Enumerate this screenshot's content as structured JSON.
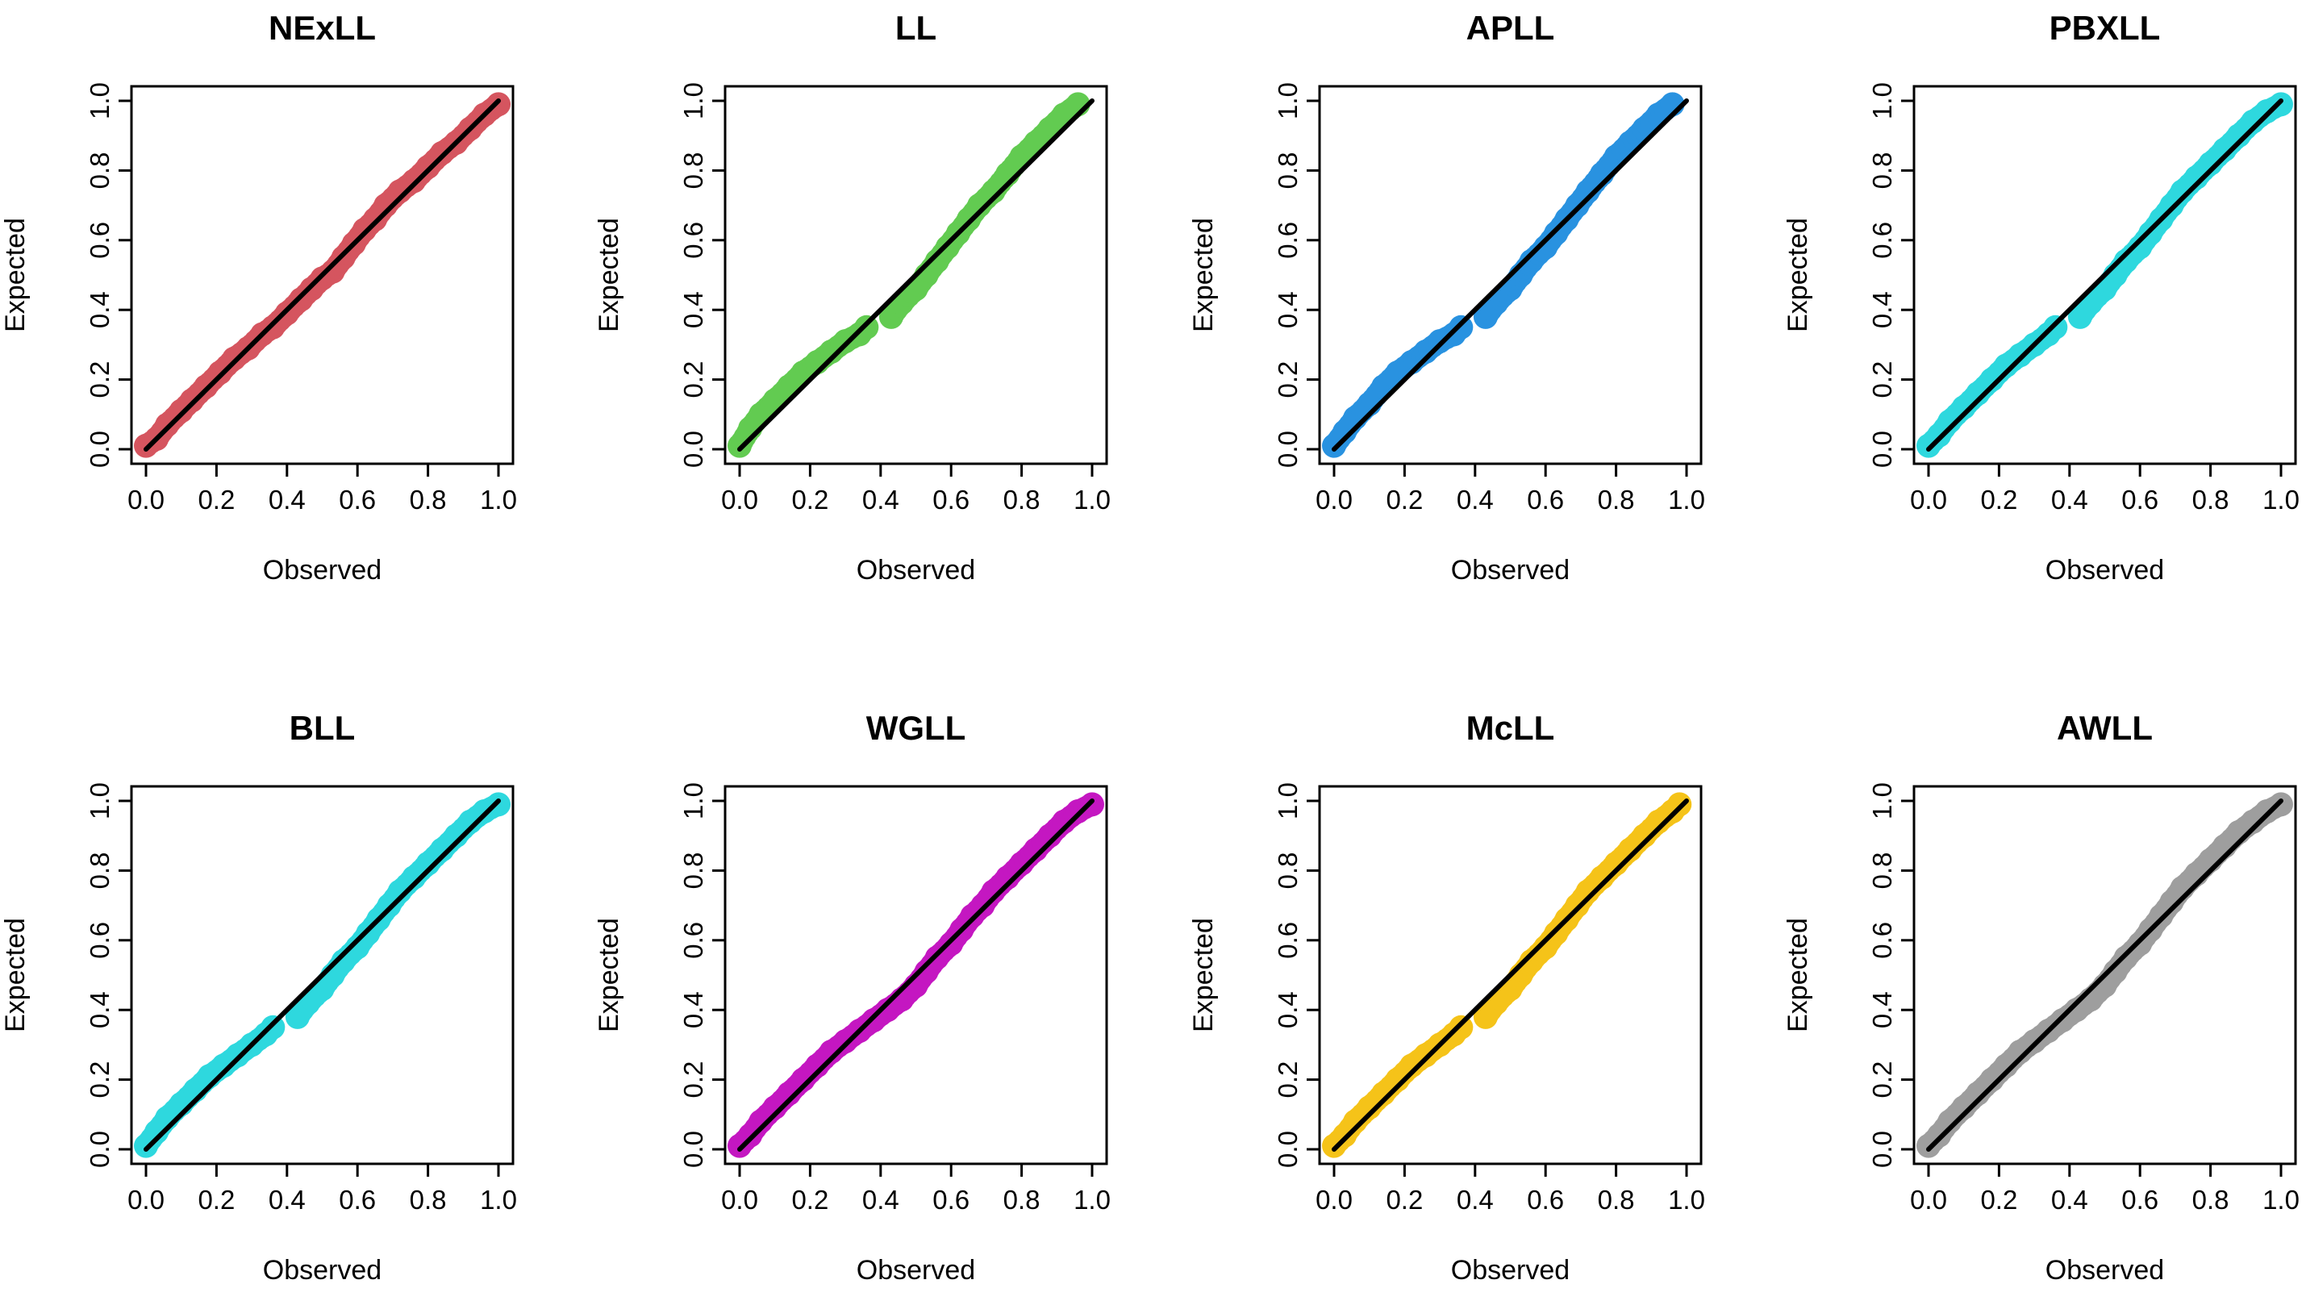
{
  "chart_data": [
    {
      "type": "scatter",
      "title": "NExLL",
      "xlabel": "Observed",
      "ylabel": "Expected",
      "color": "#D5555F",
      "xlim": [
        0,
        1
      ],
      "ylim": [
        0,
        1
      ],
      "ticks": [
        "0.0",
        "0.2",
        "0.4",
        "0.6",
        "0.8",
        "1.0"
      ],
      "x": [
        0.0,
        0.03,
        0.06,
        0.1,
        0.13,
        0.17,
        0.21,
        0.25,
        0.29,
        0.33,
        0.36,
        0.4,
        0.44,
        0.47,
        0.5,
        0.53,
        0.56,
        0.59,
        0.62,
        0.65,
        0.68,
        0.72,
        0.76,
        0.8,
        0.84,
        0.88,
        0.92,
        0.96,
        1.0
      ],
      "y": [
        0.01,
        0.03,
        0.07,
        0.11,
        0.14,
        0.18,
        0.22,
        0.26,
        0.29,
        0.33,
        0.35,
        0.39,
        0.43,
        0.46,
        0.49,
        0.51,
        0.55,
        0.59,
        0.63,
        0.66,
        0.7,
        0.74,
        0.77,
        0.81,
        0.85,
        0.88,
        0.92,
        0.96,
        0.99
      ],
      "reference_line": {
        "x": [
          0,
          1
        ],
        "y": [
          0,
          1
        ]
      }
    },
    {
      "type": "scatter",
      "title": "LL",
      "xlabel": "Observed",
      "ylabel": "Expected",
      "color": "#62CB51",
      "xlim": [
        0,
        1
      ],
      "ylim": [
        0,
        1
      ],
      "ticks": [
        "0.0",
        "0.2",
        "0.4",
        "0.6",
        "0.8",
        "1.0"
      ],
      "x": [
        0.0,
        0.03,
        0.06,
        0.1,
        0.14,
        0.18,
        0.22,
        0.26,
        0.3,
        0.34,
        0.36,
        0.43,
        0.46,
        0.5,
        0.53,
        0.56,
        0.59,
        0.62,
        0.65,
        0.68,
        0.72,
        0.76,
        0.8,
        0.84,
        0.88,
        0.92,
        0.96
      ],
      "y": [
        0.01,
        0.06,
        0.1,
        0.14,
        0.18,
        0.22,
        0.25,
        0.28,
        0.31,
        0.33,
        0.35,
        0.38,
        0.42,
        0.46,
        0.5,
        0.54,
        0.58,
        0.62,
        0.66,
        0.7,
        0.74,
        0.79,
        0.84,
        0.88,
        0.92,
        0.96,
        0.99
      ],
      "reference_line": {
        "x": [
          0,
          1
        ],
        "y": [
          0,
          1
        ]
      }
    },
    {
      "type": "scatter",
      "title": "APLL",
      "xlabel": "Observed",
      "ylabel": "Expected",
      "color": "#2992E0",
      "xlim": [
        0,
        1
      ],
      "ylim": [
        0,
        1
      ],
      "ticks": [
        "0.0",
        "0.2",
        "0.4",
        "0.6",
        "0.8",
        "1.0"
      ],
      "x": [
        0.0,
        0.03,
        0.06,
        0.1,
        0.14,
        0.18,
        0.22,
        0.26,
        0.3,
        0.34,
        0.36,
        0.43,
        0.46,
        0.5,
        0.53,
        0.56,
        0.6,
        0.63,
        0.66,
        0.69,
        0.72,
        0.76,
        0.8,
        0.84,
        0.88,
        0.92,
        0.96
      ],
      "y": [
        0.01,
        0.05,
        0.09,
        0.13,
        0.18,
        0.22,
        0.25,
        0.28,
        0.31,
        0.33,
        0.35,
        0.38,
        0.42,
        0.46,
        0.5,
        0.54,
        0.58,
        0.62,
        0.66,
        0.7,
        0.74,
        0.79,
        0.84,
        0.88,
        0.92,
        0.96,
        0.99
      ],
      "reference_line": {
        "x": [
          0,
          1
        ],
        "y": [
          0,
          1
        ]
      }
    },
    {
      "type": "scatter",
      "title": "PBXLL",
      "xlabel": "Observed",
      "ylabel": "Expected",
      "color": "#2ED8DE",
      "xlim": [
        0,
        1
      ],
      "ylim": [
        0,
        1
      ],
      "ticks": [
        "0.0",
        "0.2",
        "0.4",
        "0.6",
        "0.8",
        "1.0"
      ],
      "x": [
        0.0,
        0.03,
        0.06,
        0.1,
        0.14,
        0.18,
        0.22,
        0.26,
        0.3,
        0.34,
        0.36,
        0.43,
        0.46,
        0.5,
        0.53,
        0.56,
        0.6,
        0.63,
        0.66,
        0.69,
        0.72,
        0.76,
        0.8,
        0.84,
        0.88,
        0.92,
        0.96,
        1.0
      ],
      "y": [
        0.01,
        0.04,
        0.08,
        0.12,
        0.16,
        0.2,
        0.24,
        0.27,
        0.3,
        0.33,
        0.35,
        0.38,
        0.42,
        0.46,
        0.5,
        0.54,
        0.58,
        0.62,
        0.66,
        0.7,
        0.74,
        0.78,
        0.82,
        0.86,
        0.9,
        0.94,
        0.97,
        0.99
      ],
      "reference_line": {
        "x": [
          0,
          1
        ],
        "y": [
          0,
          1
        ]
      }
    },
    {
      "type": "scatter",
      "title": "BLL",
      "xlabel": "Observed",
      "ylabel": "Expected",
      "color": "#2ED8DE",
      "xlim": [
        0,
        1
      ],
      "ylim": [
        0,
        1
      ],
      "ticks": [
        "0.0",
        "0.2",
        "0.4",
        "0.6",
        "0.8",
        "1.0"
      ],
      "x": [
        0.0,
        0.03,
        0.06,
        0.1,
        0.14,
        0.18,
        0.22,
        0.26,
        0.3,
        0.34,
        0.36,
        0.43,
        0.46,
        0.5,
        0.53,
        0.56,
        0.6,
        0.63,
        0.66,
        0.69,
        0.72,
        0.76,
        0.8,
        0.84,
        0.88,
        0.92,
        0.96,
        1.0
      ],
      "y": [
        0.01,
        0.05,
        0.09,
        0.13,
        0.17,
        0.21,
        0.24,
        0.27,
        0.3,
        0.33,
        0.35,
        0.38,
        0.42,
        0.46,
        0.5,
        0.54,
        0.58,
        0.62,
        0.66,
        0.7,
        0.74,
        0.78,
        0.82,
        0.86,
        0.9,
        0.94,
        0.97,
        0.99
      ],
      "reference_line": {
        "x": [
          0,
          1
        ],
        "y": [
          0,
          1
        ]
      }
    },
    {
      "type": "scatter",
      "title": "WGLL",
      "xlabel": "Observed",
      "ylabel": "Expected",
      "color": "#C417C1",
      "xlim": [
        0,
        1
      ],
      "ylim": [
        0,
        1
      ],
      "ticks": [
        "0.0",
        "0.2",
        "0.4",
        "0.6",
        "0.8",
        "1.0"
      ],
      "x": [
        0.0,
        0.03,
        0.06,
        0.1,
        0.14,
        0.18,
        0.22,
        0.26,
        0.3,
        0.34,
        0.38,
        0.42,
        0.46,
        0.5,
        0.53,
        0.56,
        0.6,
        0.63,
        0.66,
        0.69,
        0.72,
        0.76,
        0.8,
        0.84,
        0.88,
        0.92,
        0.96,
        1.0
      ],
      "y": [
        0.01,
        0.04,
        0.08,
        0.12,
        0.16,
        0.2,
        0.24,
        0.28,
        0.31,
        0.34,
        0.37,
        0.4,
        0.43,
        0.47,
        0.51,
        0.55,
        0.59,
        0.63,
        0.67,
        0.7,
        0.74,
        0.78,
        0.82,
        0.86,
        0.9,
        0.94,
        0.97,
        0.99
      ],
      "reference_line": {
        "x": [
          0,
          1
        ],
        "y": [
          0,
          1
        ]
      }
    },
    {
      "type": "scatter",
      "title": "McLL",
      "xlabel": "Observed",
      "ylabel": "Expected",
      "color": "#F5C319",
      "xlim": [
        0,
        1
      ],
      "ylim": [
        0,
        1
      ],
      "ticks": [
        "0.0",
        "0.2",
        "0.4",
        "0.6",
        "0.8",
        "1.0"
      ],
      "x": [
        0.0,
        0.03,
        0.06,
        0.1,
        0.14,
        0.18,
        0.22,
        0.26,
        0.3,
        0.34,
        0.36,
        0.43,
        0.46,
        0.5,
        0.53,
        0.56,
        0.6,
        0.63,
        0.66,
        0.69,
        0.72,
        0.76,
        0.8,
        0.84,
        0.88,
        0.92,
        0.96,
        0.98
      ],
      "y": [
        0.01,
        0.04,
        0.08,
        0.12,
        0.16,
        0.2,
        0.24,
        0.27,
        0.3,
        0.33,
        0.35,
        0.38,
        0.42,
        0.46,
        0.5,
        0.54,
        0.58,
        0.62,
        0.66,
        0.7,
        0.74,
        0.78,
        0.82,
        0.86,
        0.9,
        0.94,
        0.97,
        0.99
      ],
      "reference_line": {
        "x": [
          0,
          1
        ],
        "y": [
          0,
          1
        ]
      }
    },
    {
      "type": "scatter",
      "title": "AWLL",
      "xlabel": "Observed",
      "ylabel": "Expected",
      "color": "#9E9E9E",
      "xlim": [
        0,
        1
      ],
      "ylim": [
        0,
        1
      ],
      "ticks": [
        "0.0",
        "0.2",
        "0.4",
        "0.6",
        "0.8",
        "1.0"
      ],
      "x": [
        0.0,
        0.03,
        0.06,
        0.1,
        0.14,
        0.18,
        0.22,
        0.26,
        0.3,
        0.34,
        0.38,
        0.42,
        0.46,
        0.5,
        0.53,
        0.56,
        0.6,
        0.63,
        0.66,
        0.69,
        0.72,
        0.76,
        0.8,
        0.84,
        0.88,
        0.92,
        0.96,
        1.0
      ],
      "y": [
        0.01,
        0.04,
        0.08,
        0.12,
        0.16,
        0.2,
        0.24,
        0.28,
        0.31,
        0.34,
        0.37,
        0.4,
        0.43,
        0.47,
        0.51,
        0.55,
        0.59,
        0.63,
        0.67,
        0.71,
        0.75,
        0.79,
        0.83,
        0.87,
        0.91,
        0.94,
        0.97,
        0.99
      ],
      "reference_line": {
        "x": [
          0,
          1
        ],
        "y": [
          0,
          1
        ]
      }
    }
  ]
}
